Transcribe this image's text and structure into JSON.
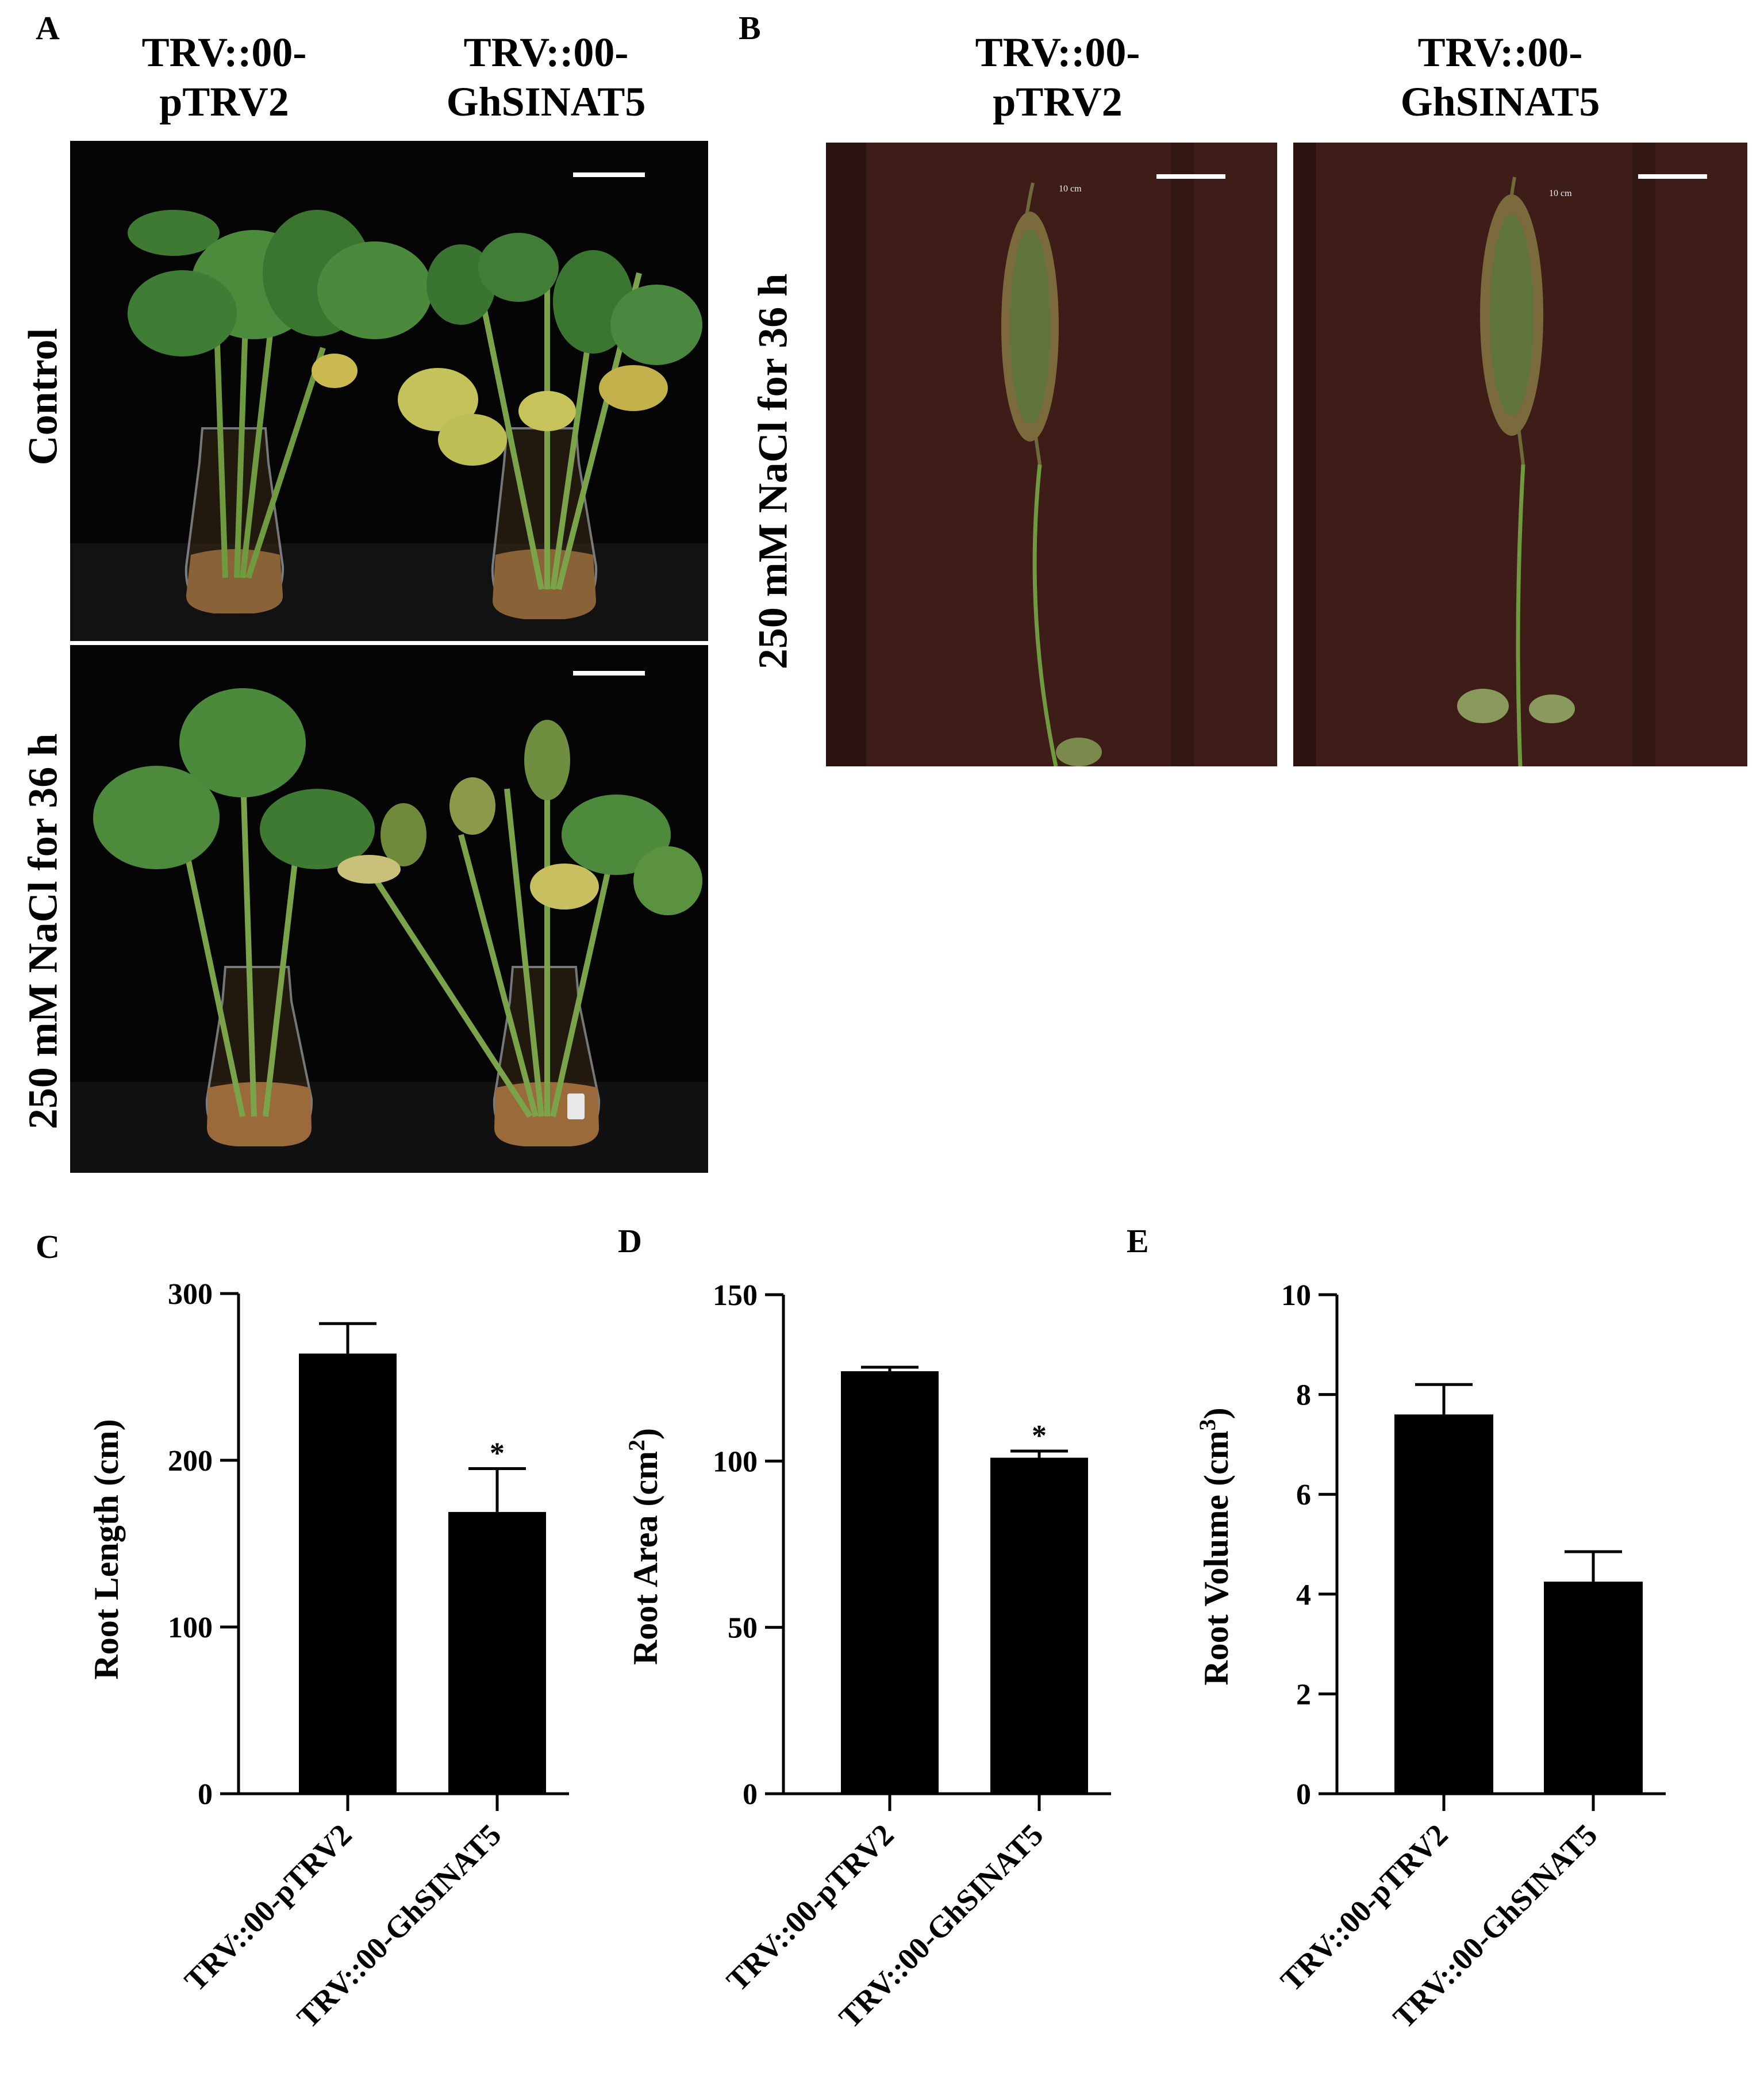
{
  "panels": {
    "A": {
      "letter": "A",
      "col_headers": [
        [
          "TRV::00-",
          "pTRV2"
        ],
        [
          "TRV::00-",
          "GhSINAT5"
        ]
      ],
      "row_labels": [
        "Control",
        "250 mM NaCl for 36 h"
      ]
    },
    "B": {
      "letter": "B",
      "col_headers": [
        [
          "TRV::00-",
          "pTRV2"
        ],
        [
          "TRV::00-",
          "GhSINAT5"
        ]
      ],
      "row_label": "250 mM NaCl for 36 h",
      "scale_text": "10 cm"
    },
    "C": {
      "letter": "C"
    },
    "D": {
      "letter": "D"
    },
    "E": {
      "letter": "E"
    }
  },
  "chart_data": [
    {
      "type": "bar",
      "panel": "C",
      "categories": [
        "TRV::00-pTRV2",
        "TRV::00-GhSINAT5"
      ],
      "values": [
        264,
        169
      ],
      "errors": [
        18,
        26
      ],
      "significance": [
        "",
        "*"
      ],
      "ylabel": "Root Length (cm)",
      "ylim": [
        0,
        300
      ],
      "yticks": [
        0,
        100,
        200,
        300
      ],
      "bar_color": "#000000"
    },
    {
      "type": "bar",
      "panel": "D",
      "categories": [
        "TRV::00-pTRV2",
        "TRV::00-GhSINAT5"
      ],
      "values": [
        127,
        101
      ],
      "errors": [
        1.2,
        2
      ],
      "significance": [
        "",
        "*"
      ],
      "ylabel_main": "Root Area (cm",
      "ylabel_sup": "2",
      "ylabel_end": ")",
      "ylim": [
        0,
        150
      ],
      "yticks": [
        0,
        50,
        100,
        150
      ],
      "bar_color": "#000000"
    },
    {
      "type": "bar",
      "panel": "E",
      "categories": [
        "TRV::00-pTRV2",
        "TRV::00-GhSINAT5"
      ],
      "values": [
        7.6,
        4.25
      ],
      "errors": [
        0.6,
        0.6
      ],
      "significance": [
        "",
        ""
      ],
      "ylabel_main": "Root Volume (cm",
      "ylabel_sup": "3",
      "ylabel_end": ")",
      "ylim": [
        0,
        10
      ],
      "yticks": [
        0,
        2,
        4,
        6,
        8,
        10
      ],
      "bar_color": "#000000"
    }
  ]
}
